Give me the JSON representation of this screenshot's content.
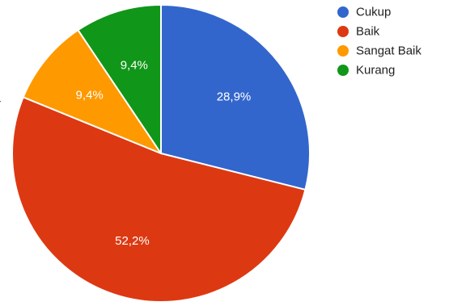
{
  "chart_data": {
    "type": "pie",
    "title": "",
    "slices": [
      {
        "name": "Cukup",
        "value": 28.9,
        "label": "28,9%",
        "color": "#3366CC"
      },
      {
        "name": "Baik",
        "value": 52.2,
        "label": "52,2%",
        "color": "#DC3912"
      },
      {
        "name": "Sangat Baik",
        "value": 9.4,
        "label": "9,4%",
        "color": "#FF9900"
      },
      {
        "name": "Kurang",
        "value": 9.4,
        "label": "9,4%",
        "color": "#109618"
      }
    ],
    "start_angle_deg": 0,
    "direction": "clockwise",
    "legend_position": "right",
    "edge_mark": "r"
  }
}
